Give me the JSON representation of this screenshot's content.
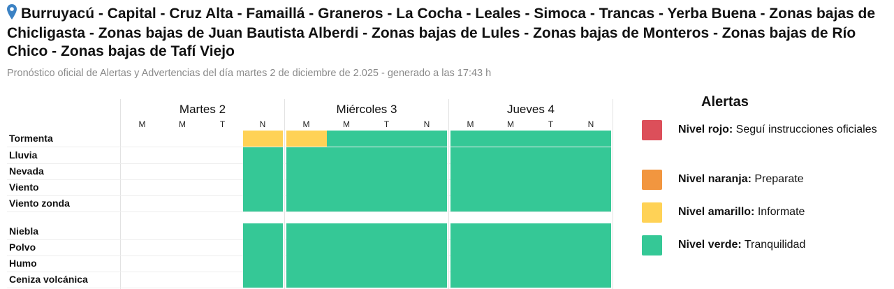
{
  "header": {
    "title": "Burruyacú - Capital - Cruz Alta - Famaillá - Graneros - La Cocha - Leales - Simoca - Trancas - Yerba Buena - Zonas bajas de Chicligasta - Zonas bajas de Juan Bautista Alberdi - Zonas bajas de Lules - Zonas bajas de Monteros - Zonas bajas de Río Chico - Zonas bajas de Tafí Viejo",
    "subtitle": "Pronóstico oficial de Alertas y Advertencias del día martes 2 de diciembre de 2.025 - generado a las 17:43 h",
    "icon": "map-pin-icon"
  },
  "days": [
    {
      "label": "Martes 2",
      "slots": [
        "M",
        "M",
        "T",
        "N"
      ]
    },
    {
      "label": "Miércoles 3",
      "slots": [
        "M",
        "M",
        "T",
        "N"
      ]
    },
    {
      "label": "Jueves 4",
      "slots": [
        "M",
        "M",
        "T",
        "N"
      ]
    }
  ],
  "colors": {
    "none": "#ffffff",
    "verde": "#35c896",
    "amarillo": "#ffd256",
    "naranja": "#f2963f",
    "rojo": "#dc4f5a"
  },
  "rows": [
    {
      "label": "Tormenta",
      "levels": [
        "none",
        "none",
        "none",
        "amarillo",
        "amarillo",
        "verde",
        "verde",
        "verde",
        "verde",
        "verde",
        "verde",
        "verde"
      ]
    },
    {
      "label": "Lluvia",
      "levels": [
        "none",
        "none",
        "none",
        "verde",
        "verde",
        "verde",
        "verde",
        "verde",
        "verde",
        "verde",
        "verde",
        "verde"
      ]
    },
    {
      "label": "Nevada",
      "levels": [
        "none",
        "none",
        "none",
        "verde",
        "verde",
        "verde",
        "verde",
        "verde",
        "verde",
        "verde",
        "verde",
        "verde"
      ]
    },
    {
      "label": "Viento",
      "levels": [
        "none",
        "none",
        "none",
        "verde",
        "verde",
        "verde",
        "verde",
        "verde",
        "verde",
        "verde",
        "verde",
        "verde"
      ]
    },
    {
      "label": "Viento zonda",
      "levels": [
        "none",
        "none",
        "none",
        "verde",
        "verde",
        "verde",
        "verde",
        "verde",
        "verde",
        "verde",
        "verde",
        "verde"
      ]
    },
    {
      "label": "Niebla",
      "levels": [
        "none",
        "none",
        "none",
        "verde",
        "verde",
        "verde",
        "verde",
        "verde",
        "verde",
        "verde",
        "verde",
        "verde"
      ]
    },
    {
      "label": "Polvo",
      "levels": [
        "none",
        "none",
        "none",
        "verde",
        "verde",
        "verde",
        "verde",
        "verde",
        "verde",
        "verde",
        "verde",
        "verde"
      ]
    },
    {
      "label": "Humo",
      "levels": [
        "none",
        "none",
        "none",
        "verde",
        "verde",
        "verde",
        "verde",
        "verde",
        "verde",
        "verde",
        "verde",
        "verde"
      ]
    },
    {
      "label": "Ceniza volcánica",
      "levels": [
        "none",
        "none",
        "none",
        "verde",
        "verde",
        "verde",
        "verde",
        "verde",
        "verde",
        "verde",
        "verde",
        "verde"
      ]
    }
  ],
  "legend": {
    "title": "Alertas",
    "items": [
      {
        "level": "rojo",
        "name": "Nivel rojo:",
        "desc": "Seguí instrucciones oficiales"
      },
      {
        "level": "naranja",
        "name": "Nivel naranja:",
        "desc": "Preparate"
      },
      {
        "level": "amarillo",
        "name": "Nivel amarillo:",
        "desc": "Informate"
      },
      {
        "level": "verde",
        "name": "Nivel verde:",
        "desc": "Tranquilidad"
      }
    ]
  }
}
